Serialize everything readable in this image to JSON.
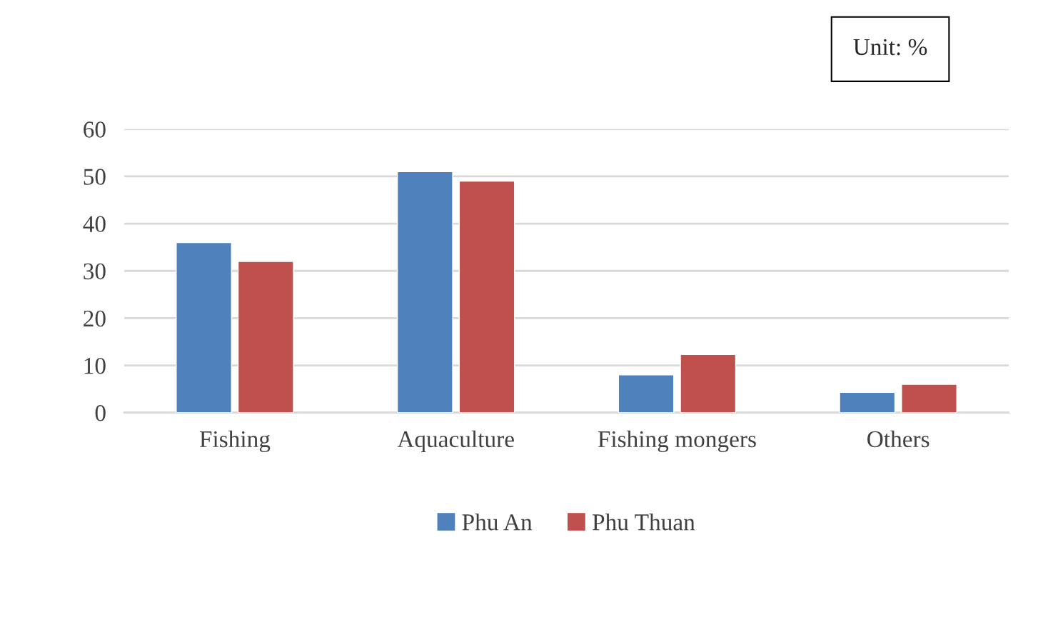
{
  "chart_data": {
    "type": "bar",
    "categories": [
      "Fishing",
      "Aquaculture",
      "Fishing mongers",
      "Others"
    ],
    "series": [
      {
        "name": "Phu An",
        "color": "#4f81bd",
        "values": [
          36,
          51,
          8,
          4.3
        ]
      },
      {
        "name": "Phu Thuan",
        "color": "#c0504d",
        "values": [
          32,
          49,
          12.3,
          6
        ]
      }
    ],
    "ylim": [
      0,
      60
    ],
    "yticks": [
      0,
      10,
      20,
      30,
      40,
      50,
      60
    ],
    "grid": "y",
    "legend": "bottom",
    "annotations": [
      "Unit: %"
    ]
  }
}
